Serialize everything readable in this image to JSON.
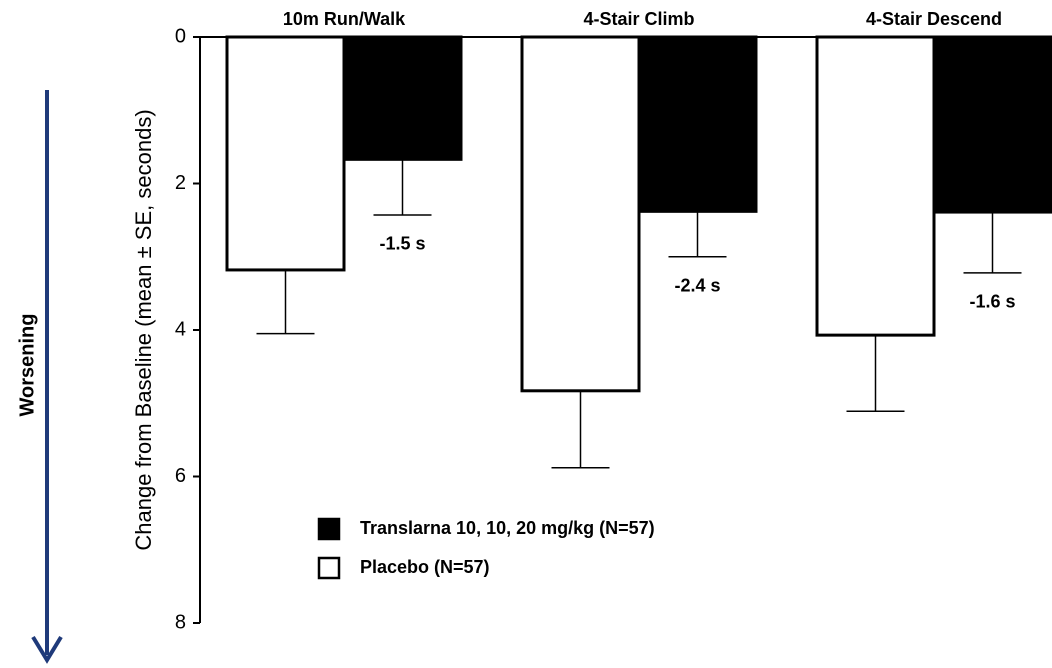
{
  "chart_data": {
    "type": "bar",
    "y_label": "Change from Baseline (mean ± SE, seconds)",
    "side_label": "Worsening",
    "categories": [
      "10m Run/Walk",
      "4-Stair Climb",
      "4-Stair Descend"
    ],
    "series": [
      {
        "name": "Placebo (N=57)",
        "color": "#ffffff",
        "values": [
          3.18,
          4.83,
          4.07
        ],
        "errors": [
          0.87,
          1.05,
          1.04
        ]
      },
      {
        "name": "Translarna 10, 10, 20 mg/kg (N=57)",
        "color": "#000000",
        "values": [
          1.67,
          2.38,
          2.39
        ],
        "errors": [
          0.76,
          0.62,
          0.83
        ]
      }
    ],
    "difference_labels": [
      "-1.5 s",
      "-2.4 s",
      "-1.6 s"
    ],
    "ylim": [
      0,
      8
    ],
    "yticks": [
      0,
      2,
      4,
      6,
      8
    ],
    "y_inverted": true
  }
}
